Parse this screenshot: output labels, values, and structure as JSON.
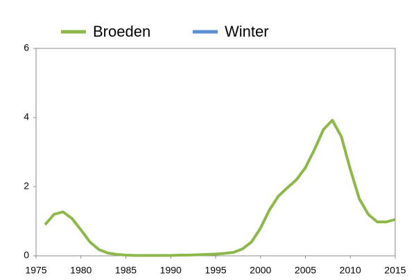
{
  "chart_data": {
    "type": "line",
    "x": [
      1976,
      1977,
      1978,
      1979,
      1980,
      1981,
      1982,
      1983,
      1984,
      1985,
      1986,
      1987,
      1988,
      1989,
      1990,
      1991,
      1992,
      1993,
      1994,
      1995,
      1996,
      1997,
      1998,
      1999,
      2000,
      2001,
      2002,
      2003,
      2004,
      2005,
      2006,
      2007,
      2008,
      2009,
      2010,
      2011,
      2012,
      2013,
      2014,
      2015
    ],
    "series": [
      {
        "name": "Broeden",
        "color": "#8cb84a",
        "values": [
          0.9,
          1.2,
          1.27,
          1.08,
          0.75,
          0.4,
          0.18,
          0.08,
          0.04,
          0.02,
          0.01,
          0.01,
          0.01,
          0.01,
          0.01,
          0.02,
          0.02,
          0.03,
          0.04,
          0.05,
          0.07,
          0.1,
          0.2,
          0.4,
          0.8,
          1.33,
          1.73,
          1.97,
          2.2,
          2.55,
          3.07,
          3.65,
          3.92,
          3.45,
          2.5,
          1.65,
          1.2,
          0.98,
          0.98,
          1.05
        ]
      },
      {
        "name": "Winter",
        "color": "#5a8fd6",
        "values": [
          null,
          null,
          null,
          null,
          null,
          null,
          null,
          null,
          null,
          null,
          null,
          null,
          null,
          null,
          null,
          null,
          null,
          null,
          null,
          null,
          null,
          null,
          null,
          null,
          null,
          null,
          null,
          null,
          null,
          null,
          null,
          null,
          null,
          null,
          null,
          null,
          null,
          null,
          null,
          null
        ]
      }
    ],
    "xlim": [
      1975,
      2015
    ],
    "xticks": [
      1975,
      1980,
      1985,
      1990,
      1995,
      2000,
      2005,
      2010,
      2015
    ],
    "ylim": [
      0,
      6
    ],
    "yticks": [
      0,
      2,
      4,
      6
    ]
  }
}
